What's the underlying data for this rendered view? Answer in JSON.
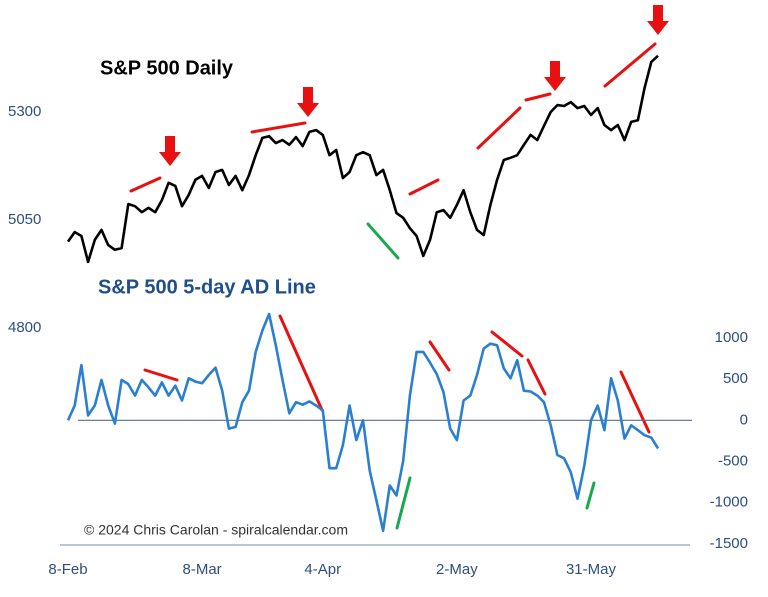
{
  "chart_data": {
    "type": "line",
    "title": "S&P 500 Daily",
    "subtitle": "S&P 500 5-day AD Line",
    "annotation": "© 2024 Chris Carolan - spiralcalendar.com",
    "categories": [
      "8-Feb",
      null,
      null,
      null,
      null,
      null,
      null,
      null,
      null,
      null,
      null,
      null,
      null,
      null,
      null,
      null,
      null,
      null,
      null,
      null,
      "8-Mar",
      null,
      null,
      null,
      null,
      null,
      null,
      null,
      null,
      null,
      null,
      null,
      null,
      null,
      null,
      null,
      null,
      null,
      "4-Apr",
      null,
      null,
      null,
      null,
      null,
      null,
      null,
      null,
      null,
      null,
      null,
      null,
      null,
      null,
      null,
      null,
      null,
      null,
      null,
      "2-May",
      null,
      null,
      null,
      null,
      null,
      null,
      null,
      null,
      null,
      null,
      null,
      null,
      null,
      null,
      null,
      null,
      null,
      null,
      null,
      "31-May",
      null,
      null,
      null,
      null,
      null,
      null,
      null,
      null,
      null,
      null
    ],
    "series": [
      {
        "name": "S&P 500 Daily",
        "color": "#000000",
        "values": [
          5000,
          5022,
          5013,
          4953,
          5004,
          5027,
          4992,
          4981,
          4985,
          5087,
          5082,
          5068,
          5078,
          5068,
          5096,
          5136,
          5129,
          5082,
          5108,
          5143,
          5152,
          5124,
          5161,
          5166,
          5131,
          5152,
          5119,
          5154,
          5200,
          5240,
          5244,
          5228,
          5235,
          5224,
          5242,
          5221,
          5254,
          5258,
          5247,
          5200,
          5212,
          5147,
          5161,
          5200,
          5207,
          5200,
          5154,
          5166,
          5119,
          5066,
          5055,
          5031,
          5013,
          4967,
          5004,
          5068,
          5073,
          5055,
          5085,
          5119,
          5068,
          5027,
          5015,
          5085,
          5143,
          5189,
          5194,
          5200,
          5224,
          5247,
          5235,
          5268,
          5300,
          5316,
          5314,
          5323,
          5309,
          5314,
          5293,
          5309,
          5270,
          5258,
          5270,
          5235,
          5277,
          5281,
          5356,
          5416,
          5430
        ]
      },
      {
        "name": "S&P 500 5-day AD Line",
        "color": "#2a7fd0",
        "axis": "y2",
        "values": [
          0,
          180,
          670,
          60,
          180,
          490,
          180,
          -40,
          490,
          440,
          300,
          490,
          400,
          300,
          460,
          300,
          420,
          240,
          510,
          470,
          450,
          550,
          640,
          360,
          -100,
          -80,
          220,
          360,
          830,
          1090,
          1290,
          910,
          490,
          85,
          220,
          190,
          230,
          180,
          120,
          -580,
          -580,
          -300,
          180,
          -240,
          0,
          -610,
          -970,
          -1340,
          -790,
          -910,
          -490,
          300,
          830,
          830,
          700,
          560,
          340,
          -100,
          -240,
          240,
          300,
          550,
          870,
          930,
          910,
          630,
          510,
          730,
          360,
          350,
          300,
          220,
          -60,
          -420,
          -460,
          -630,
          -950,
          -550,
          0,
          180,
          -120,
          510,
          240,
          -220,
          -60,
          -120,
          -180,
          -210,
          -340
        ]
      }
    ],
    "ylim": [
      4300,
      5550
    ],
    "yticks": [
      4800,
      5050,
      5300
    ],
    "y2lim": [
      -1500,
      5050
    ],
    "y2ticks": [
      -1500,
      -1000,
      -500,
      0,
      500,
      1000
    ]
  }
}
